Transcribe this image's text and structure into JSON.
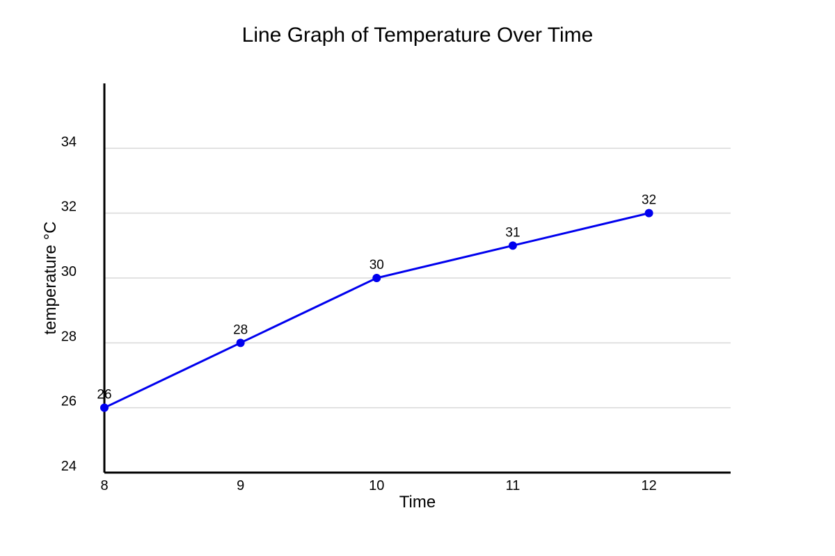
{
  "chart_data": {
    "type": "line",
    "title": "Line Graph of Temperature Over Time",
    "xlabel": "Time",
    "ylabel": "temperature °C",
    "x": [
      8,
      9,
      10,
      11,
      12
    ],
    "series": [
      {
        "values": [
          26,
          28,
          30,
          31,
          32
        ],
        "color": "#0000ee"
      }
    ],
    "xlim": [
      8,
      12.6
    ],
    "ylim": [
      24,
      36
    ],
    "x_ticks": [
      "8",
      "9",
      "10",
      "11",
      "12"
    ],
    "y_ticks": [
      "24",
      "26",
      "28",
      "30",
      "32",
      "34"
    ],
    "data_labels": [
      "26",
      "28",
      "30",
      "31",
      "32"
    ],
    "grid": "horizontal",
    "colors": {
      "line": "#0000ee",
      "marker": "#0000ee",
      "grid": "#d9d9d9",
      "axis": "#000000"
    }
  }
}
